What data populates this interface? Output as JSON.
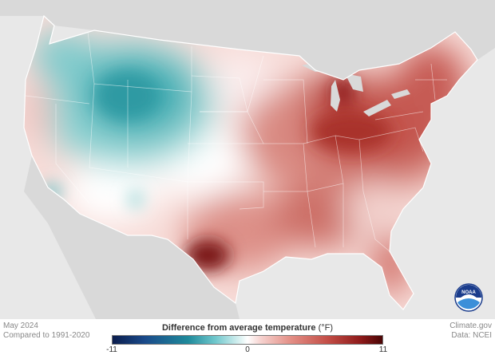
{
  "footer": {
    "month": "May 2024",
    "comparison": "Compared to 1991-2020",
    "source_site": "Climate.gov",
    "data_source": "Data: NCEI"
  },
  "legend": {
    "title": "Difference from average temperature",
    "unit": "(°F)",
    "min": "-11",
    "mid": "0",
    "max": "11",
    "colors": {
      "cold_extreme": "#0b1d4d",
      "cool": "#1f8a9b",
      "neutral": "#ffffff",
      "warm": "#c24c45",
      "warm_extreme": "#4a0505"
    }
  },
  "logo": {
    "name": "noaa-logo",
    "text": "NOAA"
  },
  "map": {
    "region": "Contiguous United States",
    "cool_anomaly_regions": [
      "Northern Rockies",
      "Pacific Northwest",
      "Great Basin"
    ],
    "warm_anomaly_regions": [
      "Texas",
      "Midwest",
      "Ohio Valley",
      "Northeast",
      "Southeast",
      "Florida"
    ],
    "hottest_spot": "Southern Texas",
    "coolest_spot": "Wyoming / Montana"
  }
}
